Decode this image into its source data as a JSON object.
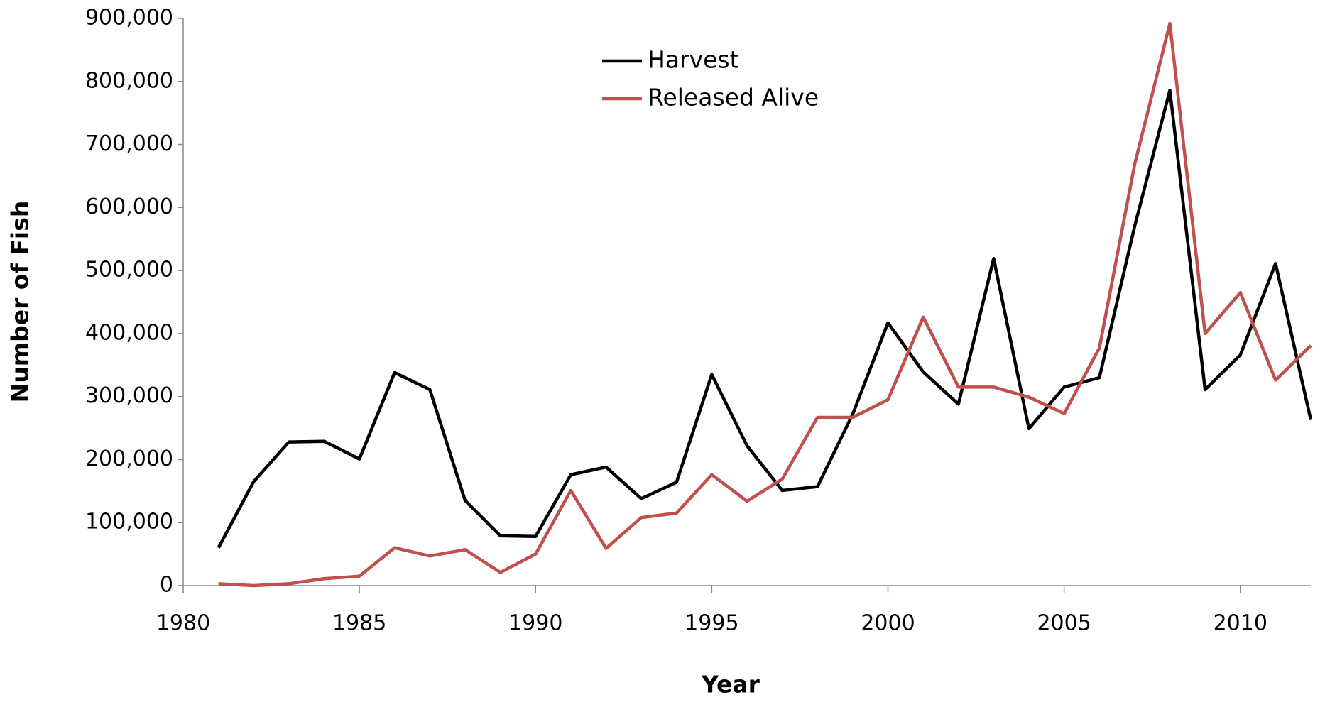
{
  "chart_data": {
    "type": "line",
    "x_label": "Year",
    "y_label": "Number of Fish",
    "x": [
      1981,
      1982,
      1983,
      1984,
      1985,
      1986,
      1987,
      1988,
      1989,
      1990,
      1991,
      1992,
      1993,
      1994,
      1995,
      1996,
      1997,
      1998,
      1999,
      2000,
      2001,
      2002,
      2003,
      2004,
      2005,
      2006,
      2007,
      2008,
      2009,
      2010,
      2011,
      2012
    ],
    "series": [
      {
        "name": "Harvest",
        "color": "#000000",
        "values": [
          60000,
          165000,
          228000,
          229000,
          201000,
          338000,
          311000,
          135000,
          79000,
          78000,
          176000,
          188000,
          138000,
          164000,
          335000,
          222000,
          151000,
          157000,
          272000,
          417000,
          339000,
          288000,
          519000,
          249000,
          315000,
          330000,
          570000,
          786000,
          311000,
          366000,
          511000,
          263000
        ]
      },
      {
        "name": "Released Alive",
        "color": "#c0504d",
        "values": [
          3000,
          0,
          3000,
          11000,
          15000,
          60000,
          47000,
          57000,
          21000,
          50000,
          151000,
          59000,
          108000,
          115000,
          176000,
          134000,
          169000,
          267000,
          267000,
          295000,
          426000,
          315000,
          315000,
          299000,
          273000,
          377000,
          668000,
          892000,
          400000,
          465000,
          326000,
          381000
        ]
      }
    ],
    "xlim": [
      1980,
      2012
    ],
    "xticks": [
      1980,
      1985,
      1990,
      1995,
      2000,
      2005,
      2010
    ],
    "ylim": [
      0,
      900000
    ],
    "yticks": [
      0,
      {
        "value": 100000,
        "label": "100,000"
      },
      {
        "value": 200000,
        "label": "200,000"
      },
      {
        "value": 300000,
        "label": "300,000"
      },
      {
        "value": 400000,
        "label": "400,000"
      },
      {
        "value": 500000,
        "label": "500,000"
      },
      {
        "value": 600000,
        "label": "600,000"
      },
      {
        "value": 700000,
        "label": "700,000"
      },
      {
        "value": 800000,
        "label": "800,000"
      },
      {
        "value": 900000,
        "label": "900,000"
      }
    ],
    "grid": false,
    "legend": "top-center"
  }
}
